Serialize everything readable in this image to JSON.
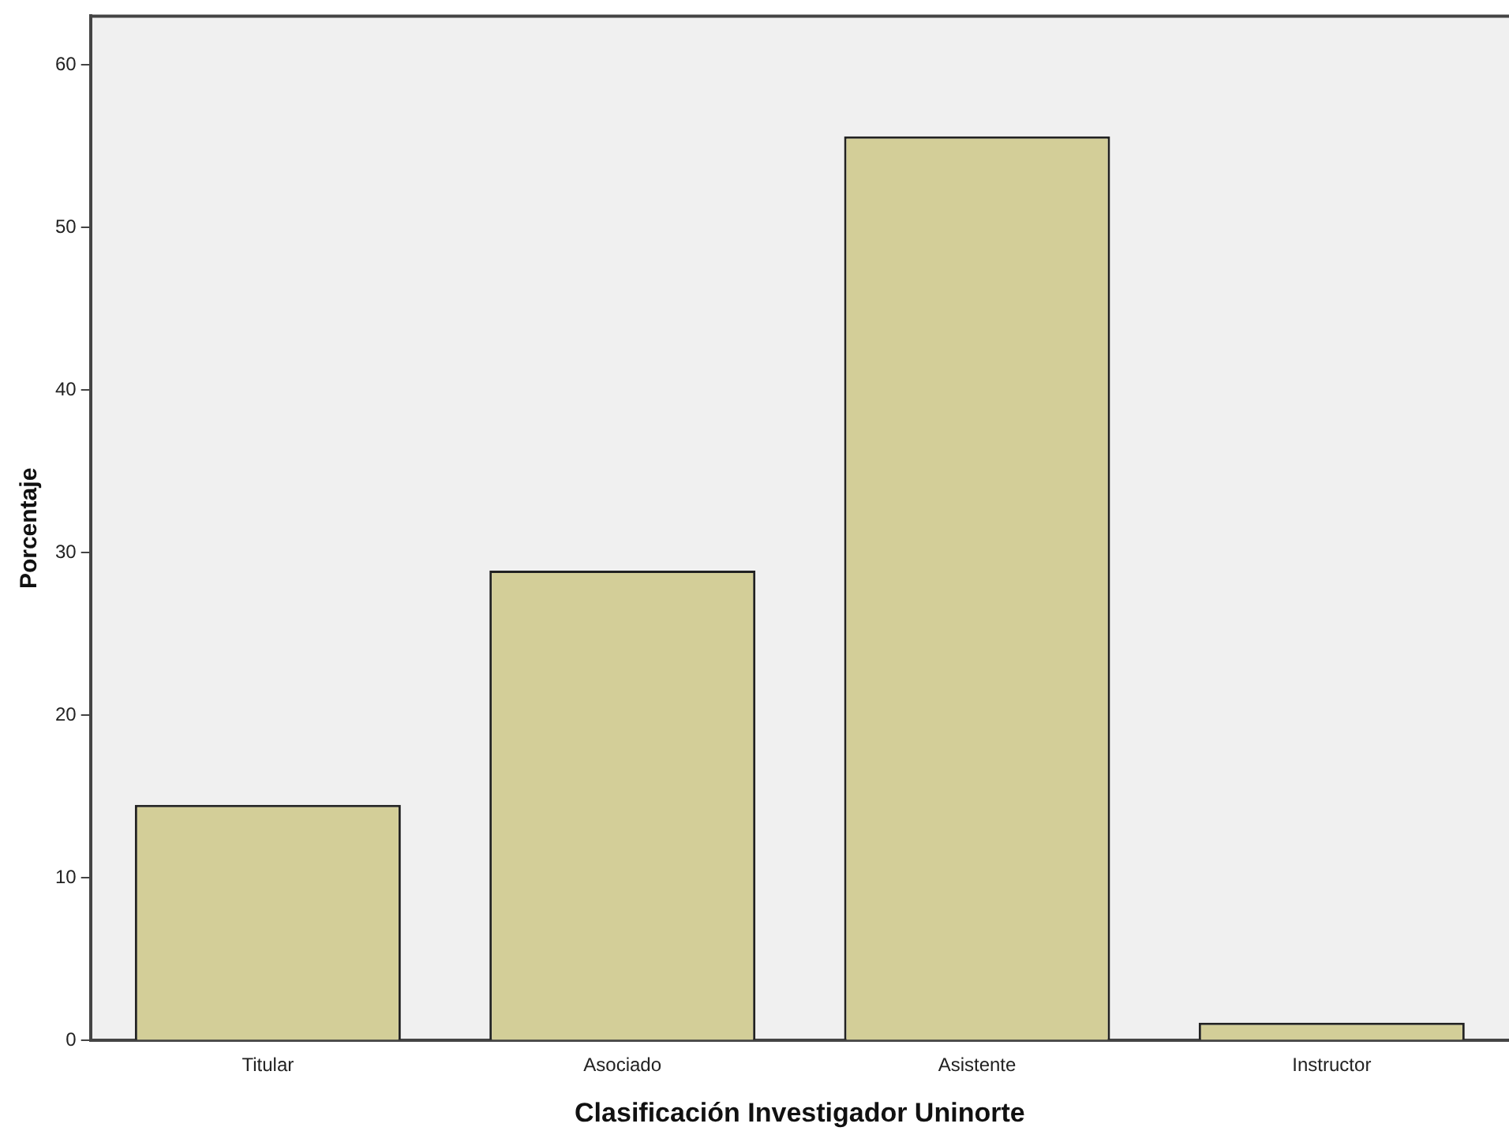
{
  "chart_data": {
    "type": "bar",
    "xlabel": "Clasificación Investigador Uninorte",
    "ylabel": "Porcentaje",
    "categories": [
      "Titular",
      "Asociado",
      "Asistente",
      "Instructor"
    ],
    "values": [
      14.5,
      28.9,
      55.6,
      1.1
    ],
    "color": "#d3ce98",
    "ylim": [
      0,
      63
    ],
    "yticks": [
      0,
      10,
      20,
      30,
      40,
      50,
      60
    ],
    "grid": false,
    "legend": false
  }
}
